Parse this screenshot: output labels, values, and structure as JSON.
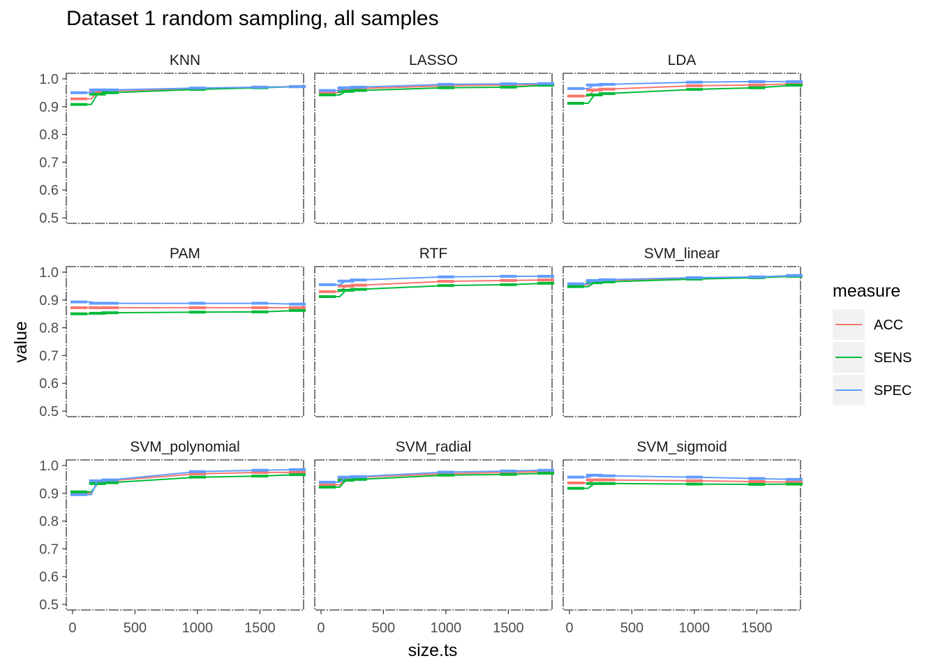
{
  "chart_data": {
    "type": "line",
    "title": "Dataset 1 random sampling, all samples",
    "xlabel": "size.ts",
    "ylabel": "value",
    "xlim": [
      -50,
      1850
    ],
    "ylim": [
      0.48,
      1.02
    ],
    "x_ticks": [
      0,
      500,
      1000,
      1500
    ],
    "x_tick_labels": [
      "0",
      "500",
      "1000",
      "1500"
    ],
    "y_ticks": [
      0.5,
      0.6,
      0.7,
      0.8,
      0.9,
      1.0
    ],
    "y_tick_labels": [
      "0.5",
      "0.6",
      "0.7",
      "0.8",
      "0.9",
      "1.0"
    ],
    "legend": {
      "title": "measure",
      "position": "right",
      "entries": [
        {
          "label": "ACC",
          "color": "#F8766D"
        },
        {
          "label": "SENS",
          "color": "#00BA38"
        },
        {
          "label": "SPEC",
          "color": "#619CFF"
        }
      ]
    },
    "x": [
      50,
      150,
      200,
      250,
      300,
      1000,
      1500,
      1800
    ],
    "panels": [
      {
        "name": "KNN",
        "series": [
          {
            "name": "ACC",
            "values": [
              0.928,
              0.928,
              0.952,
              0.955,
              0.957,
              0.965,
              0.97,
              0.972
            ]
          },
          {
            "name": "SENS",
            "values": [
              0.908,
              0.908,
              0.945,
              0.948,
              0.95,
              0.962,
              0.968,
              0.972
            ]
          },
          {
            "name": "SPEC",
            "values": [
              0.95,
              0.95,
              0.96,
              0.958,
              0.96,
              0.967,
              0.97,
              0.972
            ]
          }
        ]
      },
      {
        "name": "LASSO",
        "series": [
          {
            "name": "ACC",
            "values": [
              0.95,
              0.95,
              0.962,
              0.963,
              0.965,
              0.975,
              0.978,
              0.98
            ]
          },
          {
            "name": "SENS",
            "values": [
              0.942,
              0.942,
              0.955,
              0.957,
              0.958,
              0.968,
              0.97,
              0.977
            ]
          },
          {
            "name": "SPEC",
            "values": [
              0.958,
              0.958,
              0.968,
              0.968,
              0.97,
              0.98,
              0.982,
              0.983
            ]
          }
        ]
      },
      {
        "name": "LDA",
        "series": [
          {
            "name": "ACC",
            "values": [
              0.938,
              0.938,
              0.96,
              0.962,
              0.963,
              0.975,
              0.978,
              0.982
            ]
          },
          {
            "name": "SENS",
            "values": [
              0.912,
              0.912,
              0.942,
              0.945,
              0.947,
              0.962,
              0.968,
              0.977
            ]
          },
          {
            "name": "SPEC",
            "values": [
              0.965,
              0.965,
              0.978,
              0.978,
              0.98,
              0.988,
              0.99,
              0.99
            ]
          }
        ]
      },
      {
        "name": "PAM",
        "series": [
          {
            "name": "ACC",
            "values": [
              0.872,
              0.872,
              0.872,
              0.872,
              0.872,
              0.872,
              0.872,
              0.872
            ]
          },
          {
            "name": "SENS",
            "values": [
              0.85,
              0.85,
              0.852,
              0.853,
              0.854,
              0.856,
              0.857,
              0.862
            ]
          },
          {
            "name": "SPEC",
            "values": [
              0.893,
              0.893,
              0.888,
              0.888,
              0.888,
              0.888,
              0.888,
              0.885
            ]
          }
        ]
      },
      {
        "name": "RTF",
        "series": [
          {
            "name": "ACC",
            "values": [
              0.93,
              0.93,
              0.95,
              0.952,
              0.953,
              0.967,
              0.97,
              0.972
            ]
          },
          {
            "name": "SENS",
            "values": [
              0.912,
              0.912,
              0.935,
              0.937,
              0.938,
              0.952,
              0.955,
              0.96
            ]
          },
          {
            "name": "SPEC",
            "values": [
              0.955,
              0.955,
              0.968,
              0.97,
              0.972,
              0.983,
              0.985,
              0.985
            ]
          }
        ]
      },
      {
        "name": "SVM_linear",
        "series": [
          {
            "name": "ACC",
            "values": [
              0.955,
              0.955,
              0.968,
              0.97,
              0.971,
              0.978,
              0.982,
              0.987
            ]
          },
          {
            "name": "SENS",
            "values": [
              0.948,
              0.948,
              0.962,
              0.964,
              0.965,
              0.975,
              0.98,
              0.985
            ]
          },
          {
            "name": "SPEC",
            "values": [
              0.958,
              0.958,
              0.97,
              0.972,
              0.973,
              0.98,
              0.983,
              0.988
            ]
          }
        ]
      },
      {
        "name": "SVM_polynomial",
        "series": [
          {
            "name": "ACC",
            "values": [
              0.9,
              0.9,
              0.942,
              0.942,
              0.945,
              0.97,
              0.975,
              0.975
            ]
          },
          {
            "name": "SENS",
            "values": [
              0.905,
              0.905,
              0.935,
              0.937,
              0.938,
              0.958,
              0.962,
              0.967
            ]
          },
          {
            "name": "SPEC",
            "values": [
              0.895,
              0.895,
              0.945,
              0.945,
              0.948,
              0.978,
              0.983,
              0.985
            ]
          }
        ]
      },
      {
        "name": "SVM_radial",
        "series": [
          {
            "name": "ACC",
            "values": [
              0.93,
              0.93,
              0.955,
              0.955,
              0.958,
              0.97,
              0.975,
              0.978
            ]
          },
          {
            "name": "SENS",
            "values": [
              0.922,
              0.922,
              0.947,
              0.948,
              0.95,
              0.965,
              0.968,
              0.972
            ]
          },
          {
            "name": "SPEC",
            "values": [
              0.94,
              0.94,
              0.958,
              0.958,
              0.96,
              0.976,
              0.98,
              0.983
            ]
          }
        ]
      },
      {
        "name": "SVM_sigmoid",
        "series": [
          {
            "name": "ACC",
            "values": [
              0.937,
              0.937,
              0.948,
              0.948,
              0.948,
              0.945,
              0.942,
              0.94
            ]
          },
          {
            "name": "SENS",
            "values": [
              0.918,
              0.918,
              0.935,
              0.935,
              0.935,
              0.933,
              0.932,
              0.933
            ]
          },
          {
            "name": "SPEC",
            "values": [
              0.958,
              0.958,
              0.965,
              0.965,
              0.963,
              0.958,
              0.953,
              0.95
            ]
          }
        ]
      }
    ]
  }
}
